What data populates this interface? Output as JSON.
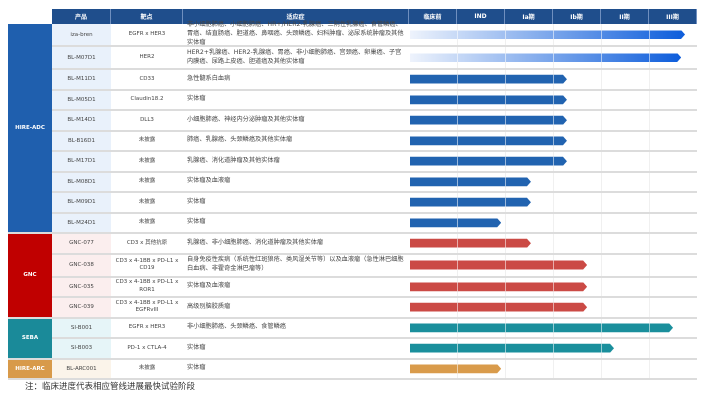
{
  "headers": [
    "产品",
    "靶点",
    "适应症",
    "临床前",
    "IND",
    "Ia期",
    "Ib期",
    "II期",
    "III期"
  ],
  "groups": [
    {
      "name": "HIRE-ADC",
      "color": "#1f5fae",
      "tint": "#e9f1fb",
      "bar": "#2163b0",
      "rows": [
        {
          "product": "iza-bren",
          "target": "EGFR x HER3",
          "indication": "非小细胞肺癌、小细胞肺癌、HR+/HER2-乳腺癌、三阴性乳腺癌、食管鳞癌、胃癌、结直肠癌、胆道癌、鼻咽癌、头颈鳞癌、妇科肿瘤、泌尿系统肿瘤及其他实体瘤",
          "stage_progress": 5.73,
          "gradient": true
        },
        {
          "product": "BL-M07D1",
          "target": "HER2",
          "indication": "HER2+乳腺癌、HER2-乳腺癌、胃癌、非小细胞肺癌、宫颈癌、卵巢癌、子宫内膜癌、尿路上皮癌、胆道癌及其他实体瘤",
          "stage_progress": 5.65,
          "gradient": true
        },
        {
          "product": "BL-M11D1",
          "target": "CD33",
          "indication": "急性髓系白血病",
          "stage_progress": 3.27
        },
        {
          "product": "BL-M05D1",
          "target": "Claudin18.2",
          "indication": "实体瘤",
          "stage_progress": 3.27
        },
        {
          "product": "BL-M14D1",
          "target": "DLL3",
          "indication": "小细胞肺癌、神经内分泌肿瘤及其他实体瘤",
          "stage_progress": 3.27
        },
        {
          "product": "BL-B16D1",
          "target": "未披露",
          "indication": "肺癌、乳腺癌、头颈鳞癌及其他实体瘤",
          "stage_progress": 3.27
        },
        {
          "product": "BL-M17D1",
          "target": "未披露",
          "indication": "乳腺癌、消化道肿瘤及其他实体瘤",
          "stage_progress": 3.27
        },
        {
          "product": "BL-M08D1",
          "target": "未披露",
          "indication": "实体瘤及血液瘤",
          "stage_progress": 2.52
        },
        {
          "product": "BL-M09D1",
          "target": "未披露",
          "indication": "实体瘤",
          "stage_progress": 2.52
        },
        {
          "product": "BL-M24D1",
          "target": "未披露",
          "indication": "实体瘤",
          "stage_progress": 1.9
        }
      ]
    },
    {
      "name": "GNC",
      "color": "#c00000",
      "tint": "#fbeeee",
      "bar": "#cb4a45",
      "rows": [
        {
          "product": "GNC-077",
          "target": "CD3 x 其他抗原",
          "indication": "乳腺癌、非小细胞肺癌、消化道肿瘤及其他实体瘤",
          "stage_progress": 2.52
        },
        {
          "product": "GNC-038",
          "target": "CD3 x 4-1BB x PD-L1 x CD19",
          "indication": "自身免疫性疾病（系统性红斑狼疮、类风湿关节等）以及血液瘤（急性淋巴细胞白血病、非霍奇金淋巴瘤等）",
          "stage_progress": 3.69
        },
        {
          "product": "GNC-035",
          "target": "CD3 x 4-1BB x PD-L1 x ROR1",
          "indication": "实体瘤及血液瘤",
          "stage_progress": 3.69
        },
        {
          "product": "GNC-039",
          "target": "CD3 x 4-1BB x PD-L1 x EGFRvIII",
          "indication": "高级别脑胶质瘤",
          "stage_progress": 3.69
        }
      ]
    },
    {
      "name": "SEBA",
      "color": "#1a8a99",
      "tint": "#e6f5f8",
      "bar": "#1a8f9c",
      "rows": [
        {
          "product": "SI-B001",
          "target": "EGFR x HER3",
          "indication": "非小细胞肺癌、头颈鳞癌、食管鳞癌",
          "stage_progress": 5.48
        },
        {
          "product": "SI-B003",
          "target": "PD-1 x CTLA-4",
          "indication": "实体瘤",
          "stage_progress": 4.25
        }
      ]
    },
    {
      "name": "HIRE-ARC",
      "color": "#d89a4a",
      "tint": "#fbf4ea",
      "bar": "#d99b4b",
      "rows": [
        {
          "product": "BL-ARC001",
          "target": "未披露",
          "indication": "实体瘤",
          "stage_progress": 1.9
        }
      ]
    }
  ],
  "note": "注：临床进度代表相应管线进展最快试验阶段"
}
